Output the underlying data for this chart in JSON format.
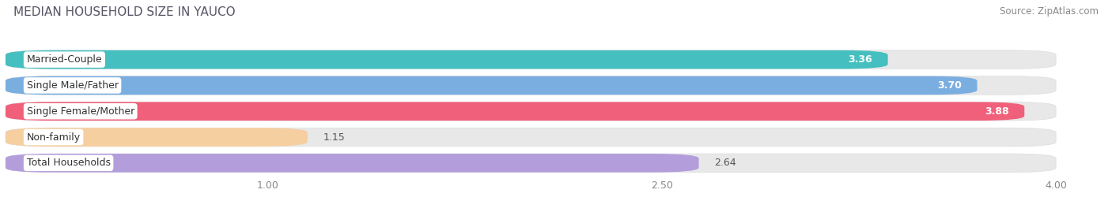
{
  "title": "MEDIAN HOUSEHOLD SIZE IN YAUCO",
  "source": "Source: ZipAtlas.com",
  "categories": [
    "Married-Couple",
    "Single Male/Father",
    "Single Female/Mother",
    "Non-family",
    "Total Households"
  ],
  "values": [
    3.36,
    3.7,
    3.88,
    1.15,
    2.64
  ],
  "bar_colors": [
    "#45bfbf",
    "#7baee0",
    "#f0607a",
    "#f5cfa0",
    "#b39ddb"
  ],
  "xlim": [
    0,
    4.15
  ],
  "xmin": 0,
  "xmax": 4.0,
  "xticks": [
    1.0,
    2.5,
    4.0
  ],
  "background_color": "#ffffff",
  "bar_background": "#e8e8e8",
  "label_bg": "#ffffff",
  "title_fontsize": 11,
  "source_fontsize": 8.5,
  "label_fontsize": 9,
  "value_fontsize": 9,
  "tick_fontsize": 9,
  "bar_height": 0.72,
  "bar_gap": 0.28
}
